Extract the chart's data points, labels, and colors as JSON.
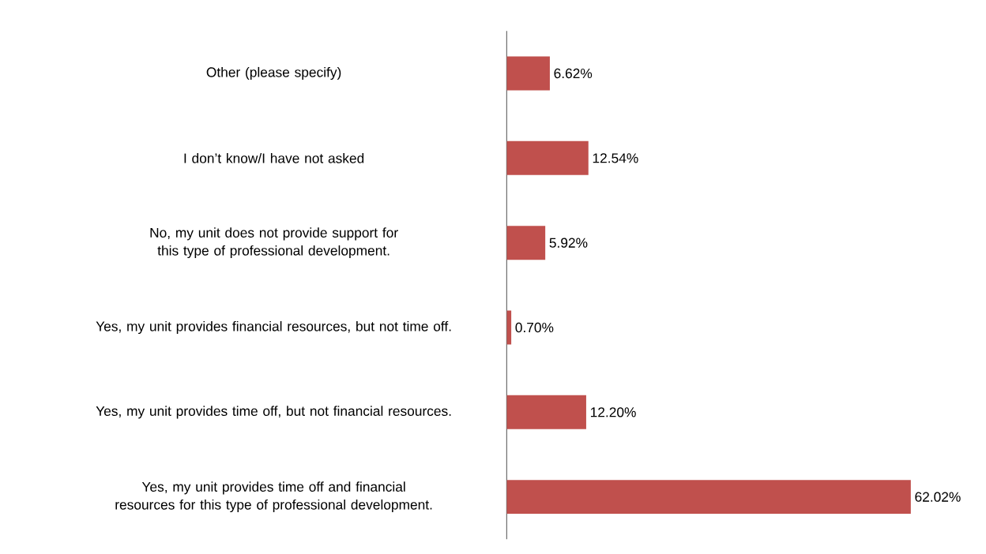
{
  "chart_data": {
    "type": "bar",
    "orientation": "horizontal",
    "categories": [
      "Other (please specify)",
      "I don’t know/I have not asked",
      "No, my unit does not provide support for this type of professional development.",
      "Yes, my unit provides financial resources, but not time off.",
      "Yes, my unit provides time off, but not financial resources.",
      "Yes, my unit provides time off and financial resources for this type of professional development."
    ],
    "values": [
      6.62,
      12.54,
      5.92,
      0.7,
      12.2,
      62.02
    ],
    "value_labels": [
      "6.62%",
      "12.54%",
      "5.92%",
      "0.70%",
      "12.20%",
      "62.02%"
    ],
    "color": "#c0504d"
  }
}
